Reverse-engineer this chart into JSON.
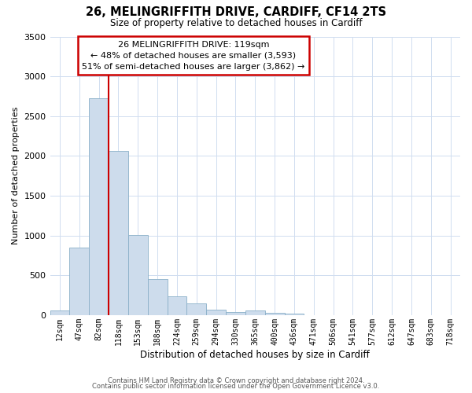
{
  "title": "26, MELINGRIFFITH DRIVE, CARDIFF, CF14 2TS",
  "subtitle": "Size of property relative to detached houses in Cardiff",
  "xlabel": "Distribution of detached houses by size in Cardiff",
  "ylabel": "Number of detached properties",
  "footnote1": "Contains HM Land Registry data © Crown copyright and database right 2024.",
  "footnote2": "Contains public sector information licensed under the Open Government Licence v3.0.",
  "bar_labels": [
    "12sqm",
    "47sqm",
    "82sqm",
    "118sqm",
    "153sqm",
    "188sqm",
    "224sqm",
    "259sqm",
    "294sqm",
    "330sqm",
    "365sqm",
    "400sqm",
    "436sqm",
    "471sqm",
    "506sqm",
    "541sqm",
    "577sqm",
    "612sqm",
    "647sqm",
    "683sqm",
    "718sqm"
  ],
  "bar_values": [
    55,
    850,
    2720,
    2060,
    1010,
    455,
    240,
    150,
    65,
    35,
    55,
    30,
    15,
    0,
    0,
    0,
    0,
    0,
    0,
    0,
    0
  ],
  "bar_color": "#cddcec",
  "bar_edge_color": "#8aafc8",
  "property_line_color": "#cc0000",
  "ylim": [
    0,
    3500
  ],
  "yticks": [
    0,
    500,
    1000,
    1500,
    2000,
    2500,
    3000,
    3500
  ],
  "annotation_title": "26 MELINGRIFFITH DRIVE: 119sqm",
  "annotation_line1": "← 48% of detached houses are smaller (3,593)",
  "annotation_line2": "51% of semi-detached houses are larger (3,862) →",
  "annotation_box_color": "#ffffff",
  "annotation_box_edge": "#cc0000",
  "grid_color": "#d0ddf0",
  "background_color": "#ffffff"
}
